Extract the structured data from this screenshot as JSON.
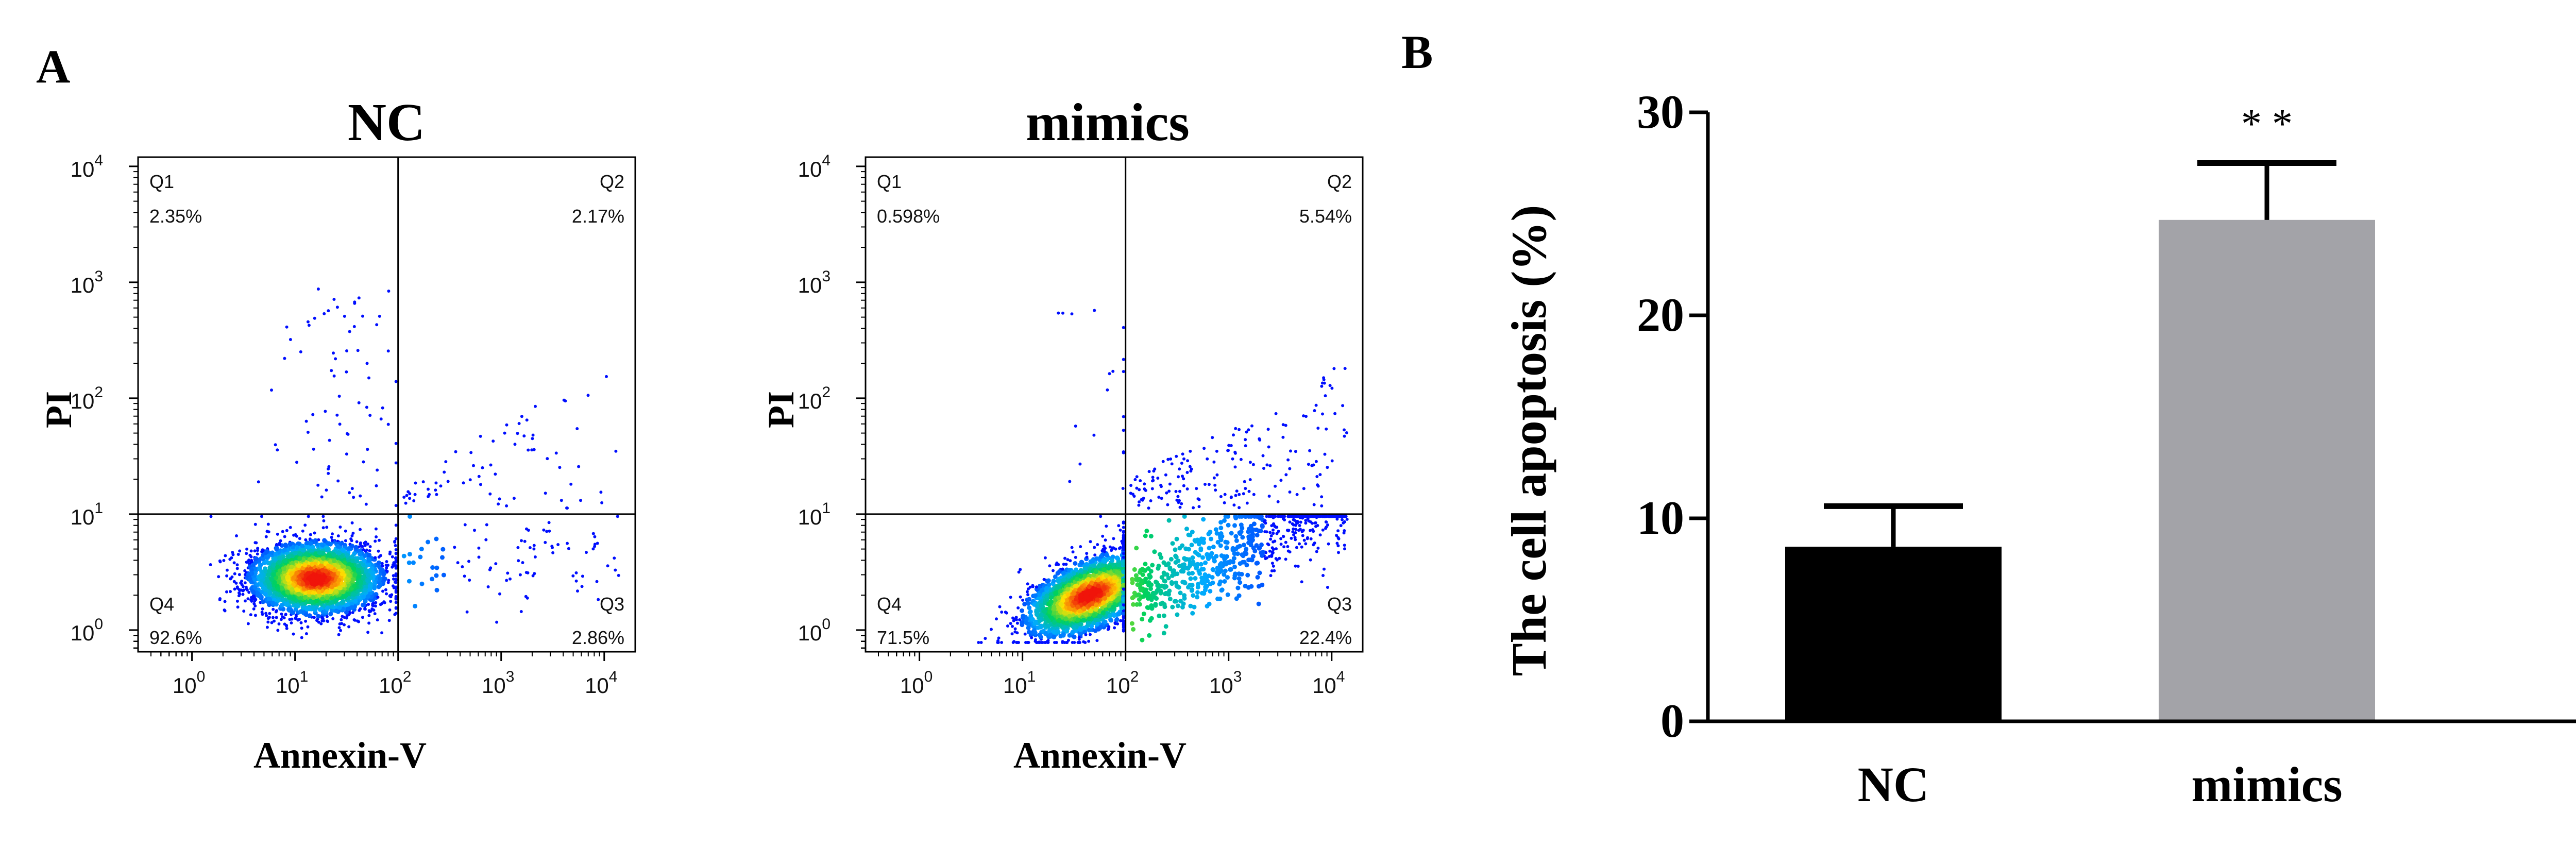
{
  "panel_labels": {
    "a": "A",
    "b": "B"
  },
  "chart_data": [
    {
      "type": "scatter",
      "subtype": "flow-cytometry-density",
      "title": "NC",
      "xlabel": "Annexin-V",
      "ylabel": "PI",
      "xscale": "log",
      "yscale": "log",
      "xlim": [
        0.3,
        20000
      ],
      "ylim": [
        0.65,
        12000
      ],
      "x_ticks": [
        "10^0",
        "10^1",
        "10^2",
        "10^3",
        "10^4"
      ],
      "y_ticks": [
        "10^0",
        "10^1",
        "10^2",
        "10^3",
        "10^4"
      ],
      "gate": {
        "x": 100,
        "y": 10
      },
      "quadrants": {
        "Q1": "2.35%",
        "Q2": "2.17%",
        "Q3": "2.86%",
        "Q4": "92.6%"
      },
      "quadrant_names": {
        "Q1": "Q1",
        "Q2": "Q2",
        "Q3": "Q3",
        "Q4": "Q4"
      },
      "population_center": {
        "x": 16,
        "y": 2.8
      },
      "seed": 11
    },
    {
      "type": "scatter",
      "subtype": "flow-cytometry-density",
      "title": "mimics",
      "xlabel": "Annexin-V",
      "ylabel": "PI",
      "xscale": "log",
      "yscale": "log",
      "xlim": [
        0.3,
        20000
      ],
      "ylim": [
        0.65,
        12000
      ],
      "x_ticks": [
        "10^0",
        "10^1",
        "10^2",
        "10^3",
        "10^4"
      ],
      "y_ticks": [
        "10^0",
        "10^1",
        "10^2",
        "10^3",
        "10^4"
      ],
      "gate": {
        "x": 100,
        "y": 10
      },
      "quadrants": {
        "Q1": "0.598%",
        "Q2": "5.54%",
        "Q3": "22.4%",
        "Q4": "71.5%"
      },
      "quadrant_names": {
        "Q1": "Q1",
        "Q2": "Q2",
        "Q3": "Q3",
        "Q4": "Q4"
      },
      "population_center": {
        "x": 45,
        "y": 2.0
      },
      "seed": 29
    },
    {
      "type": "bar",
      "title": "",
      "xlabel": "",
      "ylabel": "The cell apoptosis (%)",
      "ylim": [
        0,
        30
      ],
      "y_ticks": [
        0,
        10,
        20,
        30
      ],
      "categories": [
        "NC",
        "mimics"
      ],
      "values": [
        8.6,
        24.7
      ],
      "errors": [
        2.0,
        2.8
      ],
      "colors": [
        "#000000",
        "#a3a3a8"
      ],
      "significance": [
        "",
        "* *"
      ]
    }
  ]
}
